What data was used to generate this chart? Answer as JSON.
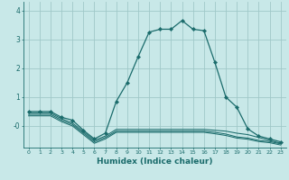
{
  "xlabel": "Humidex (Indice chaleur)",
  "bg_color": "#c8e8e8",
  "grid_color": "#a0c8c8",
  "line_color": "#1a6b6b",
  "xlim": [
    -0.5,
    23.5
  ],
  "ylim": [
    -0.75,
    4.3
  ],
  "yticks": [
    4,
    3,
    2,
    1,
    0
  ],
  "ytick_labels": [
    "4",
    "3",
    "2",
    "1",
    "-0"
  ],
  "xticks": [
    0,
    1,
    2,
    3,
    4,
    5,
    6,
    7,
    8,
    9,
    10,
    11,
    12,
    13,
    14,
    15,
    16,
    17,
    18,
    19,
    20,
    21,
    22,
    23
  ],
  "series": [
    {
      "x": [
        0,
        1,
        2,
        3,
        4,
        5,
        6,
        7,
        8,
        9,
        10,
        11,
        12,
        13,
        14,
        15,
        16,
        17,
        18,
        19,
        20,
        21,
        22,
        23
      ],
      "y": [
        0.5,
        0.5,
        0.5,
        0.3,
        0.2,
        -0.15,
        -0.45,
        -0.25,
        0.85,
        1.5,
        2.4,
        3.25,
        3.35,
        3.35,
        3.65,
        3.35,
        3.3,
        2.2,
        1.0,
        0.65,
        -0.1,
        -0.35,
        -0.45,
        -0.55
      ],
      "marker": true
    },
    {
      "x": [
        0,
        1,
        2,
        3,
        4,
        5,
        6,
        7,
        8,
        9,
        10,
        11,
        12,
        13,
        14,
        15,
        16,
        17,
        18,
        19,
        20,
        21,
        22,
        23
      ],
      "y": [
        0.45,
        0.45,
        0.45,
        0.25,
        0.1,
        -0.2,
        -0.5,
        -0.35,
        -0.12,
        -0.12,
        -0.12,
        -0.12,
        -0.12,
        -0.12,
        -0.12,
        -0.12,
        -0.12,
        -0.15,
        -0.18,
        -0.25,
        -0.3,
        -0.4,
        -0.5,
        -0.6
      ],
      "marker": false
    },
    {
      "x": [
        0,
        1,
        2,
        3,
        4,
        5,
        6,
        7,
        8,
        9,
        10,
        11,
        12,
        13,
        14,
        15,
        16,
        17,
        18,
        19,
        20,
        21,
        22,
        23
      ],
      "y": [
        0.4,
        0.4,
        0.4,
        0.2,
        0.05,
        -0.25,
        -0.55,
        -0.4,
        -0.18,
        -0.18,
        -0.18,
        -0.18,
        -0.18,
        -0.18,
        -0.18,
        -0.18,
        -0.18,
        -0.22,
        -0.28,
        -0.38,
        -0.42,
        -0.5,
        -0.54,
        -0.62
      ],
      "marker": false
    },
    {
      "x": [
        0,
        1,
        2,
        3,
        4,
        5,
        6,
        7,
        8,
        9,
        10,
        11,
        12,
        13,
        14,
        15,
        16,
        17,
        18,
        19,
        20,
        21,
        22,
        23
      ],
      "y": [
        0.35,
        0.35,
        0.35,
        0.15,
        0.0,
        -0.3,
        -0.6,
        -0.45,
        -0.22,
        -0.22,
        -0.22,
        -0.22,
        -0.22,
        -0.22,
        -0.22,
        -0.22,
        -0.22,
        -0.27,
        -0.33,
        -0.42,
        -0.46,
        -0.54,
        -0.58,
        -0.66
      ],
      "marker": false
    }
  ]
}
